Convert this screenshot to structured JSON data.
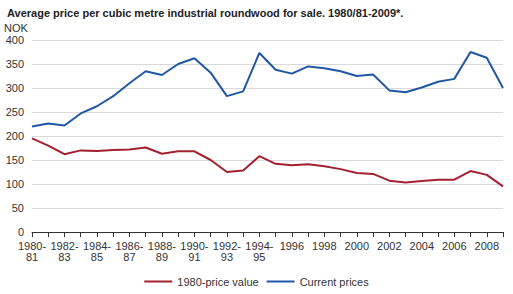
{
  "chart_data": {
    "type": "line",
    "title": "Average price per cubic metre industrial roundwood for sale. 1980/81-2009*.",
    "y_label": "NOK",
    "categories": [
      "1980-81",
      null,
      "1982-83",
      null,
      "1984-85",
      null,
      "1986-87",
      null,
      "1988-89",
      null,
      "1990-91",
      null,
      "1992-93",
      null,
      "1994-95",
      null,
      "1996",
      null,
      "1998",
      null,
      "2000",
      null,
      "2002",
      null,
      "2004",
      null,
      "2006",
      null,
      "2008",
      null
    ],
    "series": [
      {
        "name": "1980-price value",
        "color": "#a3202f",
        "values": [
          195,
          180,
          162,
          170,
          169,
          171,
          172,
          176,
          163,
          168,
          168,
          150,
          125,
          128,
          158,
          142,
          139,
          141,
          137,
          131,
          123,
          121,
          107,
          103,
          106,
          109,
          109,
          127,
          119,
          95
        ]
      },
      {
        "name": "Current prices",
        "color": "#1f57a4",
        "values": [
          220,
          226,
          222,
          247,
          262,
          283,
          310,
          335,
          327,
          350,
          362,
          332,
          283,
          293,
          373,
          338,
          330,
          345,
          341,
          335,
          325,
          328,
          295,
          291,
          301,
          313,
          319,
          375,
          363,
          300
        ]
      }
    ],
    "ylim": [
      0,
      400
    ],
    "yticks": [
      0,
      50,
      100,
      150,
      200,
      250,
      300,
      350,
      400
    ],
    "grid": true,
    "legend": "bottom"
  }
}
